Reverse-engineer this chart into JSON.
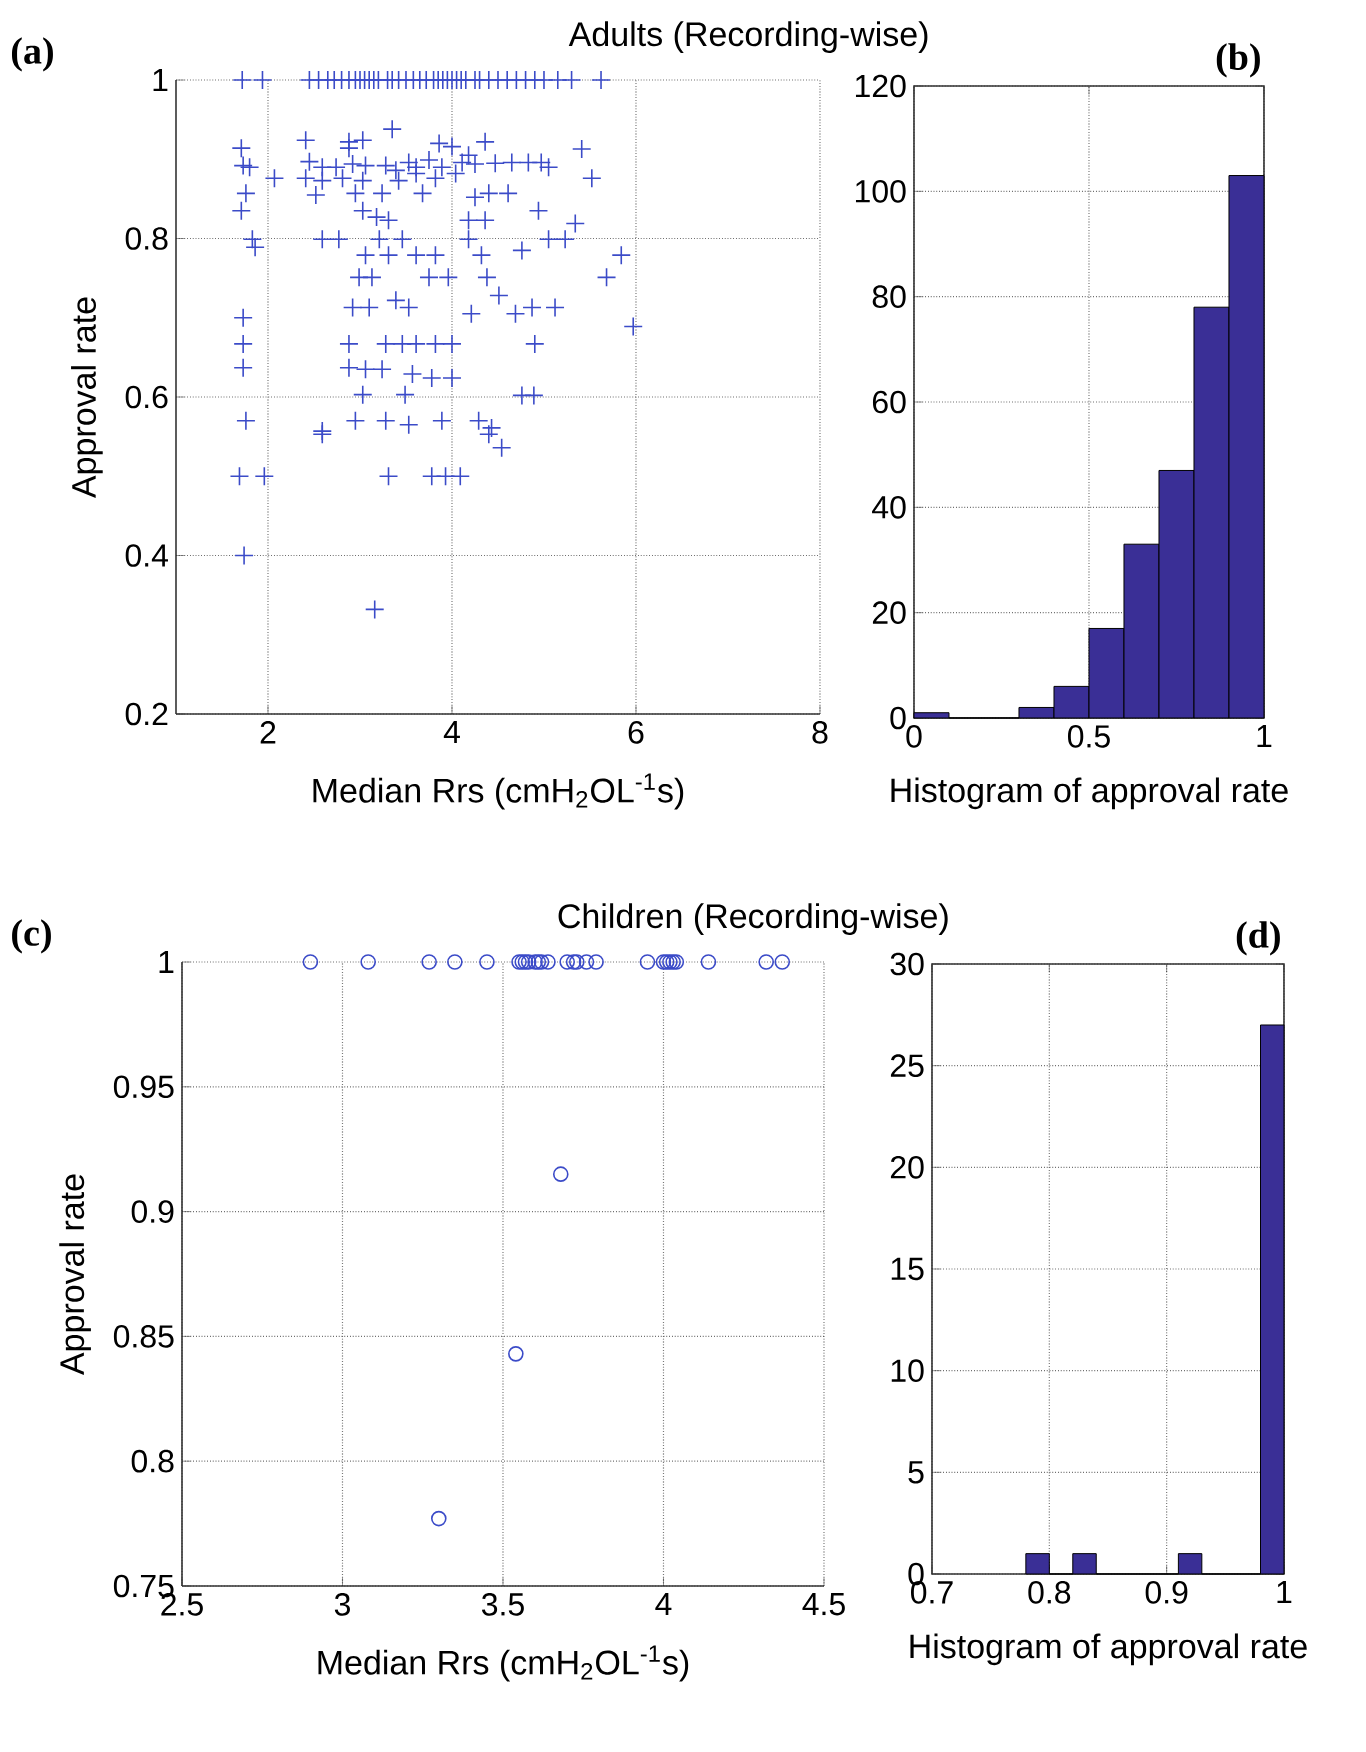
{
  "chart_data": [
    {
      "type": "scatter",
      "title": "Adults (Recording-wise)",
      "xlabel": "Median Rrs (cmH$_{2}$OL$^{-1}$s)",
      "ylabel": "Approval rate",
      "annotations": [
        "(a)"
      ],
      "color": "#3b4bc8",
      "marker": "cross",
      "grid": true,
      "xlim": [
        1,
        8
      ],
      "ylim": [
        0.2,
        1
      ],
      "xticks": [
        2,
        4,
        6,
        8
      ],
      "yticks": [
        0.2,
        0.4,
        0.6,
        0.8,
        1
      ],
      "x": [
        1.72,
        1.94,
        2.45,
        2.55,
        2.65,
        2.72,
        2.8,
        2.88,
        2.95,
        3.0,
        3.05,
        3.1,
        3.15,
        3.2,
        3.3,
        3.35,
        3.42,
        3.5,
        3.58,
        3.65,
        3.72,
        3.8,
        3.85,
        3.9,
        3.95,
        4.0,
        4.05,
        4.1,
        4.15,
        4.25,
        4.3,
        4.4,
        4.5,
        4.6,
        4.7,
        4.8,
        4.9,
        5.0,
        5.15,
        5.3,
        5.62,
        2.41,
        2.88,
        3.35,
        3.86,
        4.36,
        5.41,
        1.71,
        2.88,
        3.03,
        3.53,
        4.0,
        4.18,
        1.73,
        1.8,
        2.45,
        2.59,
        2.74,
        2.92,
        3.06,
        3.28,
        3.39,
        3.61,
        3.75,
        3.89,
        4.11,
        4.25,
        4.47,
        4.65,
        4.83,
        4.97,
        5.05,
        2.07,
        2.41,
        2.59,
        2.81,
        3.03,
        3.42,
        3.61,
        3.82,
        4.04,
        5.52,
        1.76,
        2.52,
        2.95,
        3.24,
        3.68,
        4.25,
        4.4,
        4.61,
        1.71,
        3.03,
        3.18,
        3.31,
        4.18,
        4.36,
        4.94,
        5.34,
        1.83,
        1.86,
        2.59,
        2.77,
        3.21,
        3.46,
        4.18,
        4.76,
        5.05,
        5.23,
        5.84,
        5.68,
        3.06,
        3.31,
        3.61,
        3.82,
        4.32,
        2.99,
        3.13,
        3.75,
        3.96,
        4.38,
        1.73,
        2.92,
        3.1,
        3.39,
        3.53,
        4.21,
        4.51,
        4.69,
        4.87,
        5.12,
        5.97,
        1.73,
        2.88,
        3.28,
        3.46,
        3.61,
        3.82,
        4.0,
        4.9,
        1.73,
        2.88,
        3.06,
        3.24,
        3.57,
        3.78,
        4.0,
        3.03,
        3.49,
        4.76,
        4.89,
        1.76,
        2.59,
        2.95,
        3.28,
        3.53,
        3.89,
        4.29,
        4.43,
        2.59,
        4.54,
        4.4,
        1.69,
        1.96,
        3.31,
        3.78,
        3.93,
        4.09,
        1.74,
        3.16
      ],
      "values": [
        1,
        1,
        1,
        1,
        1,
        1,
        1,
        1,
        1,
        1,
        1,
        1,
        1,
        1,
        1,
        1,
        1,
        1,
        1,
        1,
        1,
        1,
        1,
        1,
        1,
        1,
        1,
        1,
        1,
        1,
        1,
        1,
        1,
        1,
        1,
        1,
        1,
        1,
        1,
        1,
        1,
        0.924,
        0.922,
        0.938,
        0.92,
        0.922,
        0.913,
        0.914,
        0.914,
        0.924,
        0.896,
        0.916,
        0.905,
        0.892,
        0.89,
        0.897,
        0.89,
        0.89,
        0.894,
        0.892,
        0.892,
        0.886,
        0.89,
        0.899,
        0.89,
        0.896,
        0.894,
        0.895,
        0.896,
        0.896,
        0.896,
        0.89,
        0.876,
        0.876,
        0.873,
        0.876,
        0.873,
        0.873,
        0.882,
        0.876,
        0.882,
        0.876,
        0.857,
        0.855,
        0.857,
        0.857,
        0.857,
        0.852,
        0.857,
        0.857,
        0.835,
        0.835,
        0.827,
        0.823,
        0.823,
        0.823,
        0.835,
        0.819,
        0.799,
        0.789,
        0.799,
        0.799,
        0.799,
        0.799,
        0.799,
        0.785,
        0.799,
        0.799,
        0.779,
        0.751,
        0.779,
        0.779,
        0.779,
        0.779,
        0.779,
        0.751,
        0.751,
        0.751,
        0.751,
        0.751,
        0.7,
        0.713,
        0.713,
        0.722,
        0.713,
        0.705,
        0.728,
        0.705,
        0.713,
        0.713,
        0.689,
        0.667,
        0.667,
        0.667,
        0.667,
        0.667,
        0.667,
        0.667,
        0.667,
        0.637,
        0.637,
        0.635,
        0.635,
        0.629,
        0.624,
        0.624,
        0.603,
        0.603,
        0.602,
        0.602,
        0.57,
        0.557,
        0.57,
        0.57,
        0.565,
        0.57,
        0.57,
        0.561,
        0.553,
        0.536,
        0.553,
        0.5,
        0.5,
        0.5,
        0.5,
        0.5,
        0.5,
        0.4,
        0.332
      ]
    },
    {
      "type": "histogram",
      "xlabel": "Histogram of approval rate",
      "annotations": [
        "(b)"
      ],
      "color": "#3a2f96",
      "grid": true,
      "xlim": [
        0,
        1
      ],
      "ylim": [
        0,
        120
      ],
      "xticks": [
        0,
        0.5,
        1
      ],
      "yticks": [
        0,
        20,
        40,
        60,
        80,
        100,
        120
      ],
      "bins": [
        0,
        0.1,
        0.2,
        0.3,
        0.4,
        0.5,
        0.6,
        0.7,
        0.8,
        0.9,
        1
      ],
      "values": [
        1,
        0,
        0,
        2,
        6,
        17,
        33,
        47,
        78,
        103
      ]
    },
    {
      "type": "scatter",
      "title": "Children (Recording-wise)",
      "xlabel": "Median Rrs (cmH$_{2}$OL$^{-1}$s)",
      "ylabel": "Approval rate",
      "annotations": [
        "(c)"
      ],
      "color": "#3b4bc8",
      "marker": "circle",
      "grid": true,
      "xlim": [
        2.5,
        4.5
      ],
      "ylim": [
        0.75,
        1
      ],
      "xticks": [
        2.5,
        3,
        3.5,
        4,
        4.5
      ],
      "yticks": [
        0.75,
        0.8,
        0.85,
        0.9,
        0.95,
        1
      ],
      "x": [
        2.9,
        3.08,
        3.27,
        3.35,
        3.45,
        3.55,
        3.56,
        3.57,
        3.58,
        3.6,
        3.61,
        3.62,
        3.64,
        3.7,
        3.72,
        3.73,
        3.76,
        3.79,
        3.95,
        4.0,
        4.01,
        4.02,
        4.03,
        4.04,
        4.14,
        4.32,
        4.37,
        3.68,
        3.54,
        3.3
      ],
      "values": [
        1,
        1,
        1,
        1,
        1,
        1,
        1,
        1,
        1,
        1,
        1,
        1,
        1,
        1,
        1,
        1,
        1,
        1,
        1,
        1,
        1,
        1,
        1,
        1,
        1,
        1,
        1,
        0.915,
        0.843,
        0.777
      ]
    },
    {
      "type": "histogram",
      "xlabel": "Histogram of approval rate",
      "annotations": [
        "(d)"
      ],
      "color": "#3a2f96",
      "grid": true,
      "xlim": [
        0.7,
        1
      ],
      "ylim": [
        0,
        30
      ],
      "xticks": [
        0.7,
        0.8,
        0.9,
        1
      ],
      "yticks": [
        0,
        5,
        10,
        15,
        20,
        25,
        30
      ],
      "bins": [
        0.78,
        0.8,
        0.82,
        0.84,
        0.91,
        0.93,
        0.98,
        1
      ],
      "values": [
        1,
        0,
        1,
        0,
        1,
        0,
        27
      ]
    }
  ]
}
